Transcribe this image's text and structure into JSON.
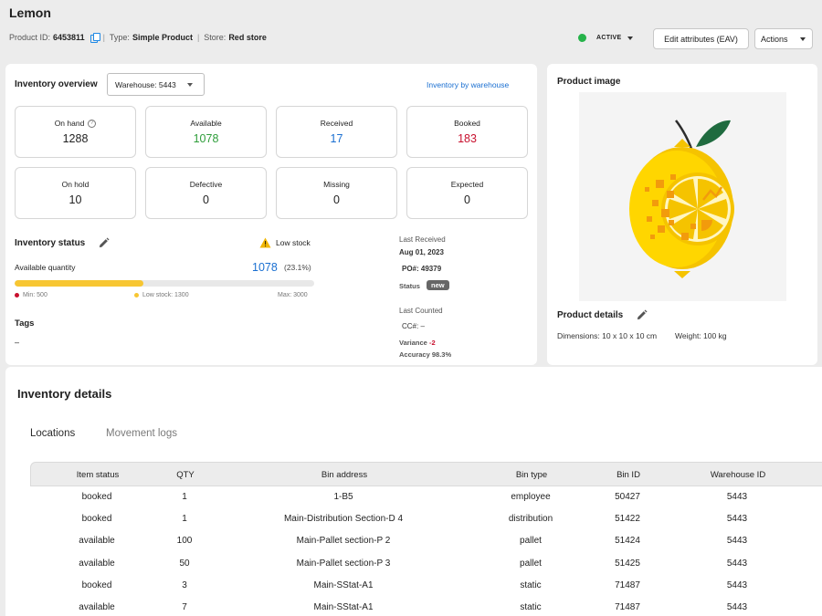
{
  "product": {
    "title": "Lemon",
    "id_label": "Product ID:",
    "id_value": "6453811",
    "type_label": "Type:",
    "type_value": "Simple Product",
    "store_label": "Store:",
    "store_value": "Red store"
  },
  "header": {
    "status": "ACTIVE",
    "status_color": "#26b34a",
    "edit_attributes": "Edit attributes (EAV)",
    "actions": "Actions"
  },
  "inventory_overview": {
    "title": "Inventory overview",
    "warehouse_select": "Warehouse: 5443",
    "link": "Inventory by warehouse",
    "stats": [
      {
        "label": "On hand",
        "value": "1288",
        "color": "#1f1f1f"
      },
      {
        "label": "Available",
        "value": "1078",
        "color": "#2e9d3a"
      },
      {
        "label": "Received",
        "value": "17",
        "color": "#1a6fd1"
      },
      {
        "label": "Booked",
        "value": "183",
        "color": "#c8102e"
      },
      {
        "label": "On hold",
        "value": "10",
        "color": "#1f1f1f"
      },
      {
        "label": "Defective",
        "value": "0",
        "color": "#1f1f1f"
      },
      {
        "label": "Missing",
        "value": "0",
        "color": "#1f1f1f"
      },
      {
        "label": "Expected",
        "value": "0",
        "color": "#1f1f1f"
      }
    ]
  },
  "inventory_status": {
    "title": "Inventory status",
    "warning": "Low stock",
    "available_label": "Available quantity",
    "available_value": "1078",
    "available_pct": "(23.1%)",
    "fill_fraction": 0.431,
    "min_label": "Min: 500",
    "low_label": "Low stock: 1300",
    "max_label": "Max: 3000",
    "min_color": "#c8102e",
    "low_color": "#f7c632",
    "tags_title": "Tags",
    "tags_value": "–"
  },
  "last_received": {
    "title": "Last Received",
    "date": "Aug 01, 2023",
    "po": "PO#: 49379",
    "status_label": "Status",
    "status_badge": "new"
  },
  "last_counted": {
    "title": "Last Counted",
    "cc": "CC#: –",
    "variance_label": "Variance",
    "variance_value": "-2",
    "accuracy": "Accuracy 98.3%"
  },
  "product_image": {
    "title": "Product image"
  },
  "product_details": {
    "title": "Product details",
    "dimensions": "Dimensions: 10 x 10 x 10 cm",
    "weight": "Weight: 100 kg"
  },
  "inventory_details": {
    "title": "Inventory details",
    "tabs": [
      "Locations",
      "Movement logs"
    ],
    "columns": [
      "Item status",
      "QTY",
      "Bin address",
      "Bin type",
      "Bin ID",
      "Warehouse ID"
    ],
    "rows": [
      [
        "booked",
        "1",
        "1-B5",
        "employee",
        "50427",
        "5443"
      ],
      [
        "booked",
        "1",
        "Main-Distribution Section-D 4",
        "distribution",
        "51422",
        "5443"
      ],
      [
        "available",
        "100",
        "Main-Pallet section-P 2",
        "pallet",
        "51424",
        "5443"
      ],
      [
        "available",
        "50",
        "Main-Pallet section-P 3",
        "pallet",
        "51425",
        "5443"
      ],
      [
        "booked",
        "3",
        "Main-SStat-A1",
        "static",
        "71487",
        "5443"
      ],
      [
        "available",
        "7",
        "Main-SStat-A1",
        "static",
        "71487",
        "5443"
      ]
    ]
  }
}
